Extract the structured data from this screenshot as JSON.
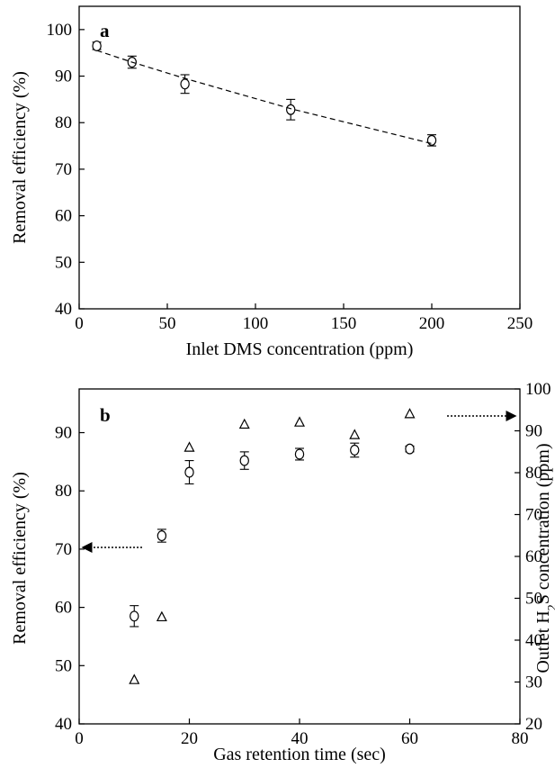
{
  "chart_data": [
    {
      "type": "scatter",
      "panel_label": "a",
      "xlabel": "Inlet DMS concentration (ppm)",
      "ylabel": "Removal efficiency (%)",
      "xlim": [
        0,
        250
      ],
      "ylim": [
        40,
        105
      ],
      "xticks": [
        0,
        50,
        100,
        150,
        200,
        250
      ],
      "yticks": [
        40,
        50,
        60,
        70,
        80,
        90,
        100
      ],
      "grid": false,
      "series": [
        {
          "marker": "circle",
          "x": [
            10,
            30,
            60,
            120,
            200
          ],
          "y": [
            96.5,
            93.0,
            88.3,
            82.8,
            76.2
          ],
          "yerr": [
            0.8,
            1.3,
            2.0,
            2.2,
            1.2
          ]
        },
        {
          "style": "dashed-line",
          "x": [
            10,
            30,
            60,
            120,
            200
          ],
          "y": [
            95.5,
            93.0,
            89.5,
            83.0,
            75.5
          ]
        }
      ]
    },
    {
      "type": "scatter",
      "panel_label": "b",
      "xlabel": "Gas retention time (sec)",
      "ylabel": "Removal efficiency (%)",
      "y2label": "Outlet H2S concentration (ppm)",
      "xlim": [
        0,
        80
      ],
      "ylim": [
        40,
        97.5
      ],
      "y2lim": [
        20,
        100
      ],
      "xticks": [
        0,
        20,
        40,
        60,
        80
      ],
      "yticks": [
        40,
        50,
        60,
        70,
        80,
        90
      ],
      "y2ticks": [
        20,
        30,
        40,
        50,
        60,
        70,
        80,
        90,
        100
      ],
      "grid": false,
      "series": [
        {
          "marker": "circle",
          "axis": "left",
          "x": [
            10,
            15,
            20,
            30,
            40,
            50,
            60
          ],
          "y": [
            58.5,
            72.3,
            83.2,
            85.2,
            86.3,
            87.0,
            87.2
          ],
          "yerr": [
            1.8,
            1.1,
            2.0,
            1.5,
            1.0,
            1.2,
            0.5
          ]
        },
        {
          "marker": "triangle",
          "axis": "right",
          "x": [
            10,
            15,
            20,
            30,
            40,
            50,
            60
          ],
          "y": [
            30.5,
            45.5,
            86.0,
            91.5,
            92.0,
            89.0,
            94.0
          ]
        }
      ]
    }
  ]
}
